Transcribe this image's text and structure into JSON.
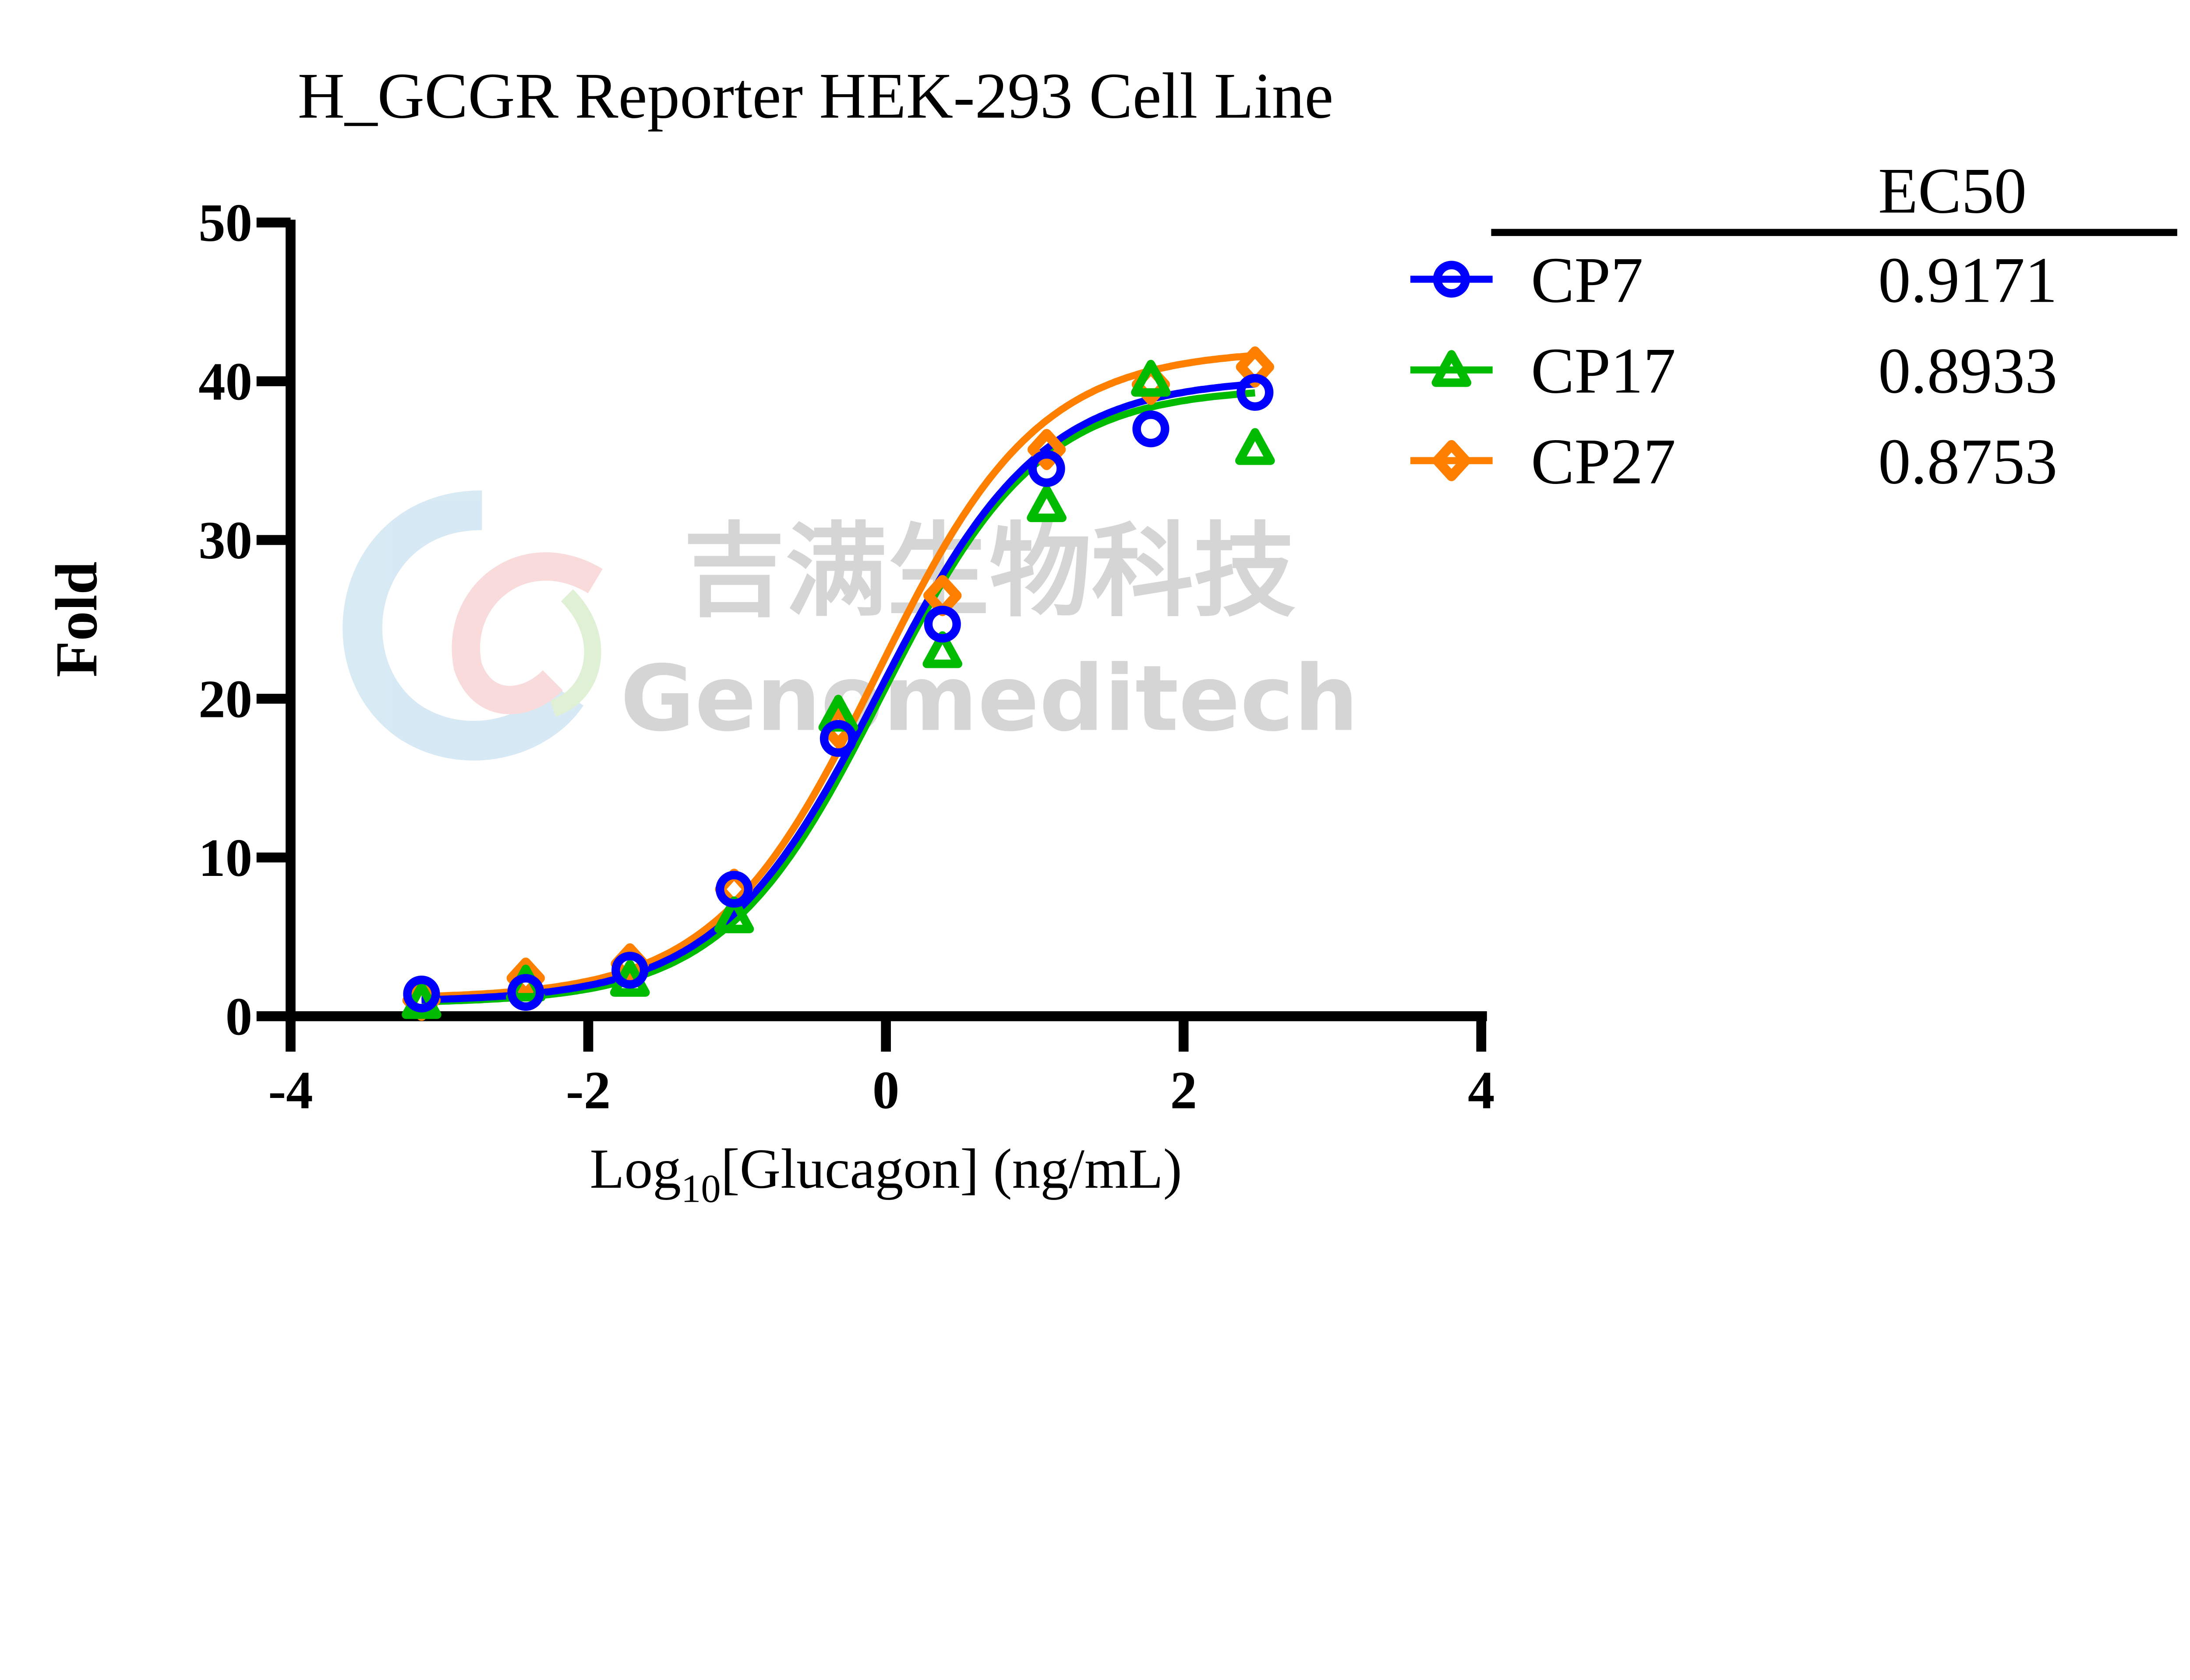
{
  "chart_data": {
    "type": "scatter",
    "title": "H_GCGR Reporter HEK-293 Cell Line",
    "xlabel_main": "Log",
    "xlabel_sub": "10",
    "xlabel_rest": "[Glucagon] (ng/mL)",
    "ylabel": "Fold",
    "xlim": [
      -4,
      4
    ],
    "ylim": [
      0,
      50
    ],
    "x_ticks": [
      "-4",
      "-2",
      "0",
      "2",
      "4"
    ],
    "y_ticks": [
      "0",
      "10",
      "20",
      "30",
      "40",
      "50"
    ],
    "grid": false,
    "legend_position": "right",
    "legend_header": "EC50",
    "x": [
      -3.12,
      -2.42,
      -1.72,
      -1.02,
      -0.32,
      0.38,
      1.08,
      1.78,
      2.48
    ],
    "series": [
      {
        "name": "CP7",
        "ec50": "0.9171",
        "color": "#0000FF",
        "marker": "circle",
        "values": [
          1.4,
          1.5,
          2.9,
          8.0,
          17.5,
          24.7,
          34.5,
          37.0,
          39.3
        ]
      },
      {
        "name": "CP17",
        "ec50": "0.8933",
        "color": "#00BB00",
        "marker": "triangle",
        "values": [
          0.9,
          2.0,
          2.3,
          6.3,
          19.0,
          23.0,
          32.2,
          40.1,
          35.8
        ]
      },
      {
        "name": "CP27",
        "ec50": "0.8753",
        "color": "#FF8000",
        "marker": "diamond",
        "values": [
          1.0,
          2.4,
          3.3,
          8.0,
          18.2,
          26.5,
          35.7,
          39.8,
          40.9
        ]
      }
    ]
  },
  "watermark": {
    "cn": "吉满生物科技",
    "en": "Genomeditech"
  }
}
